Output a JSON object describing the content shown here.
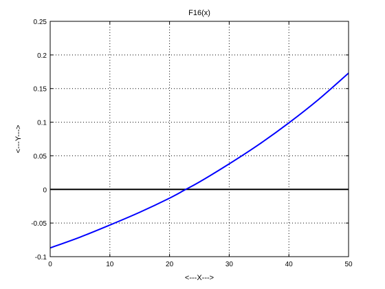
{
  "chart_data": {
    "type": "line",
    "title": "F16(x)",
    "xlabel": "<---X--->",
    "ylabel": "<---Y--->",
    "xlim": [
      0,
      50
    ],
    "ylim": [
      -0.1,
      0.25
    ],
    "x_ticks": [
      0,
      10,
      20,
      30,
      40,
      50
    ],
    "y_ticks": [
      -0.1,
      -0.05,
      0,
      0.05,
      0.1,
      0.15,
      0.2,
      0.25
    ],
    "x_tick_labels": [
      "0",
      "10",
      "20",
      "30",
      "40",
      "50"
    ],
    "y_tick_labels": [
      "-0.1",
      "-0.05",
      "0",
      "0.05",
      "0.1",
      "0.15",
      "0.2",
      "0.25"
    ],
    "grid": true,
    "reference_line_y": 0,
    "series": [
      {
        "color": "#0000ff",
        "x": [
          0,
          5,
          10,
          15,
          20,
          22.5,
          25,
          30,
          35,
          40,
          45,
          50
        ],
        "y": [
          -0.087,
          -0.071,
          -0.053,
          -0.034,
          -0.013,
          -0.001,
          0.011,
          0.038,
          0.067,
          0.099,
          0.134,
          0.173
        ]
      }
    ],
    "reference_line_color": "#000000"
  }
}
